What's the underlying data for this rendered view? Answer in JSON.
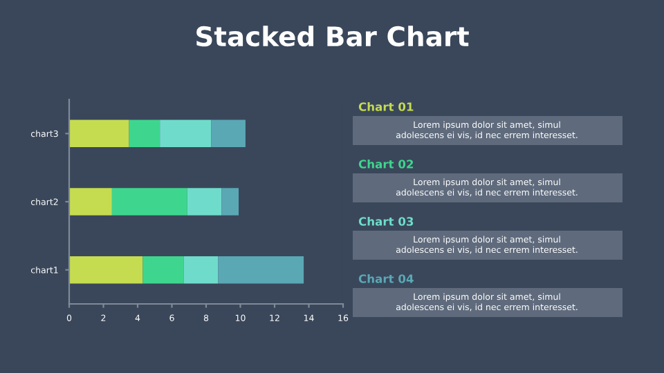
{
  "chart_data": {
    "type": "bar",
    "orientation": "horizontal",
    "stacked": true,
    "title": "Stacked Bar Chart",
    "categories": [
      "chart3",
      "chart2",
      "chart1"
    ],
    "series": [
      {
        "name": "Chart 01",
        "color": "#c5dc50",
        "values": [
          3.5,
          2.5,
          4.3
        ]
      },
      {
        "name": "Chart 02",
        "color": "#3ed68e",
        "values": [
          1.8,
          4.4,
          2.4
        ]
      },
      {
        "name": "Chart 03",
        "color": "#6fdccb",
        "values": [
          3.0,
          2.0,
          2.0
        ]
      },
      {
        "name": "Chart 04",
        "color": "#5ba8b5",
        "values": [
          2.0,
          1.0,
          5.0
        ]
      }
    ],
    "xlim": [
      0,
      16
    ],
    "xticks": [
      0,
      2,
      4,
      6,
      8,
      10,
      12,
      14,
      16
    ],
    "grid": false,
    "legend": "right",
    "annotations": [
      "Lorem ipsum dolor sit amet, simul\nadolescens ei vis, id nec errem interesset.",
      "Lorem ipsum dolor sit amet, simul\nadolescens ei vis, id nec errem interesset.",
      "Lorem ipsum dolor sit amet, simul\nadolescens ei vis, id nec errem interesset.",
      "Lorem ipsum dolor sit amet, simul\nadolescens ei vis, id nec errem interesset."
    ]
  }
}
